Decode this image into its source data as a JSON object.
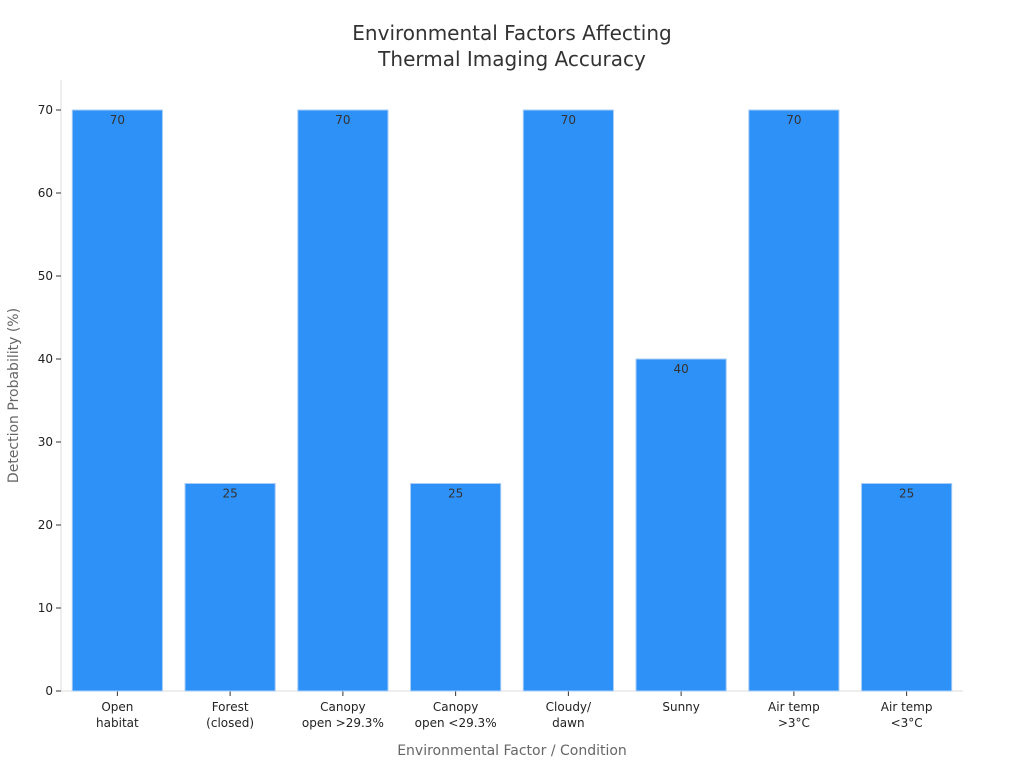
{
  "chart_data": {
    "type": "bar",
    "title": "Environmental Factors Affecting\nThermal Imaging Accuracy",
    "xlabel": "Environmental Factor / Condition",
    "ylabel": "Detection Probability (%)",
    "categories": [
      "Open\nhabitat",
      "Forest\n(closed)",
      "Canopy\nopen >29.3%",
      "Canopy\nopen <29.3%",
      "Cloudy/\ndawn",
      "Sunny",
      "Air temp\n>3°C",
      "Air temp\n<3°C"
    ],
    "values": [
      70,
      25,
      70,
      25,
      70,
      40,
      70,
      25
    ],
    "ylim": [
      0,
      70
    ],
    "yticks": [
      0,
      10,
      20,
      30,
      40,
      50,
      60,
      70
    ],
    "grid": false,
    "bar_color": "#2e91f8",
    "bar_edge_color": "#a9cdf5"
  }
}
